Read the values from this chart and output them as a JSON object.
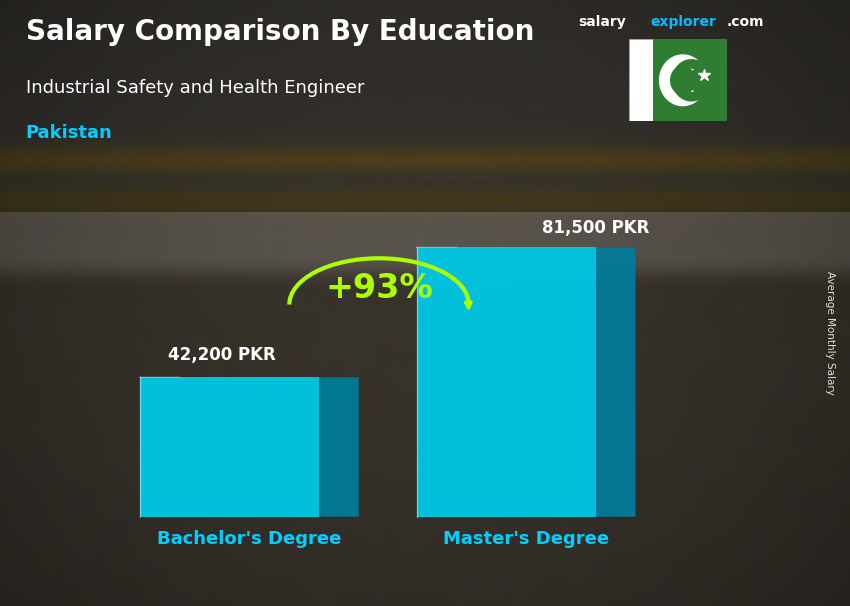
{
  "title1": "Salary Comparison By Education",
  "title2": "Industrial Safety and Health Engineer",
  "title3": "Pakistan",
  "ylabel": "Average Monthly Salary",
  "categories": [
    "Bachelor's Degree",
    "Master's Degree"
  ],
  "values": [
    42200,
    81500
  ],
  "value_labels": [
    "42,200 PKR",
    "81,500 PKR"
  ],
  "pct_change": "+93%",
  "bar_color_face": "#00C8E6",
  "bar_color_side": "#007B9A",
  "bar_color_top": "#00B0D0",
  "title_color": "#FFFFFF",
  "subtitle_color": "#FFFFFF",
  "pakistan_color": "#00CFFF",
  "value_color": "#FFFFFF",
  "pct_color": "#AAFF00",
  "label_color": "#00CFFF",
  "arrow_color": "#AAFF00",
  "bg_top": "#4a5560",
  "bg_mid": "#5a6570",
  "bg_bot": "#3a4040",
  "floor_color": "#2a2a25",
  "site_salary_color": "#FFFFFF",
  "site_explorer_color": "#00BFFF",
  "flag_green": "#2E7D32",
  "flag_white": "#FFFFFF"
}
